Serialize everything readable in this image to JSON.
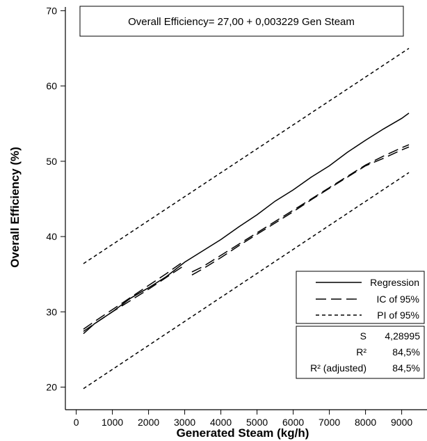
{
  "chart_data": {
    "type": "line",
    "xlabel": "Generated Steam (kg/h)",
    "ylabel": "Overall Efficiency (%)",
    "xlim": [
      -300,
      9700
    ],
    "ylim": [
      17,
      70.5
    ],
    "x_ticks": [
      0,
      1000,
      2000,
      3000,
      4000,
      5000,
      6000,
      7000,
      8000,
      9000
    ],
    "y_ticks": [
      20,
      30,
      40,
      50,
      60,
      70
    ],
    "grid": false,
    "equation": "Overall Efficiency= 27,00 + 0,003229 Gen Steam",
    "legend_position": "bottom-right",
    "series": [
      {
        "name": "Regression",
        "style": "solid",
        "x": [
          200,
          500,
          1000,
          1500,
          2000,
          2500,
          3000,
          3500,
          4000,
          4500,
          5000,
          5500,
          6000,
          6500,
          7000,
          7500,
          8000,
          8500,
          9000,
          9200
        ],
        "y": [
          27.1,
          28.4,
          30.0,
          31.8,
          33.2,
          34.7,
          36.6,
          38.1,
          39.6,
          41.3,
          42.9,
          44.7,
          46.2,
          47.9,
          49.4,
          51.2,
          52.8,
          54.3,
          55.7,
          56.4
        ]
      },
      {
        "name": "IC of 95%",
        "style": "longdash",
        "segments": [
          {
            "x": [
              200,
              500,
              1000,
              1500,
              2000,
              2500,
              3000
            ],
            "y": [
              27.7,
              28.7,
              30.3,
              31.9,
              33.5,
              35.1,
              36.8
            ]
          },
          {
            "x": [
              3200,
              3500,
              4000,
              4500,
              5000,
              5500,
              6000,
              6500,
              7000,
              7500,
              8000,
              8500,
              9000,
              9200
            ],
            "y": [
              34.9,
              35.7,
              37.2,
              38.8,
              40.3,
              41.8,
              43.3,
              44.9,
              46.4,
              47.9,
              49.4,
              50.4,
              51.5,
              51.9
            ]
          },
          {
            "x": [
              200,
              500,
              1000,
              1500,
              2000,
              2500,
              3000
            ],
            "y": [
              27.4,
              28.4,
              30.0,
              31.5,
              33.0,
              34.6,
              36.2
            ]
          },
          {
            "x": [
              3200,
              3500,
              4000,
              4500,
              5000,
              5500,
              6000,
              6500,
              7000,
              7500,
              8000,
              8500,
              9000,
              9200
            ],
            "y": [
              35.3,
              36.0,
              37.5,
              39.0,
              40.5,
              42.0,
              43.5,
              45.0,
              46.5,
              48.0,
              49.5,
              50.7,
              51.8,
              52.2
            ]
          }
        ]
      },
      {
        "name": "PI of 95%",
        "style": "shortdash",
        "segments": [
          {
            "x": [
              200,
              9200
            ],
            "y": [
              36.4,
              65.0
            ]
          },
          {
            "x": [
              200,
              9200
            ],
            "y": [
              19.8,
              48.5
            ]
          }
        ]
      }
    ],
    "stats": [
      {
        "label": "S",
        "value": "4,28995"
      },
      {
        "label": "R²",
        "value": "84,5%"
      },
      {
        "label": "R² (adjusted)",
        "value": "84,5%"
      }
    ]
  }
}
